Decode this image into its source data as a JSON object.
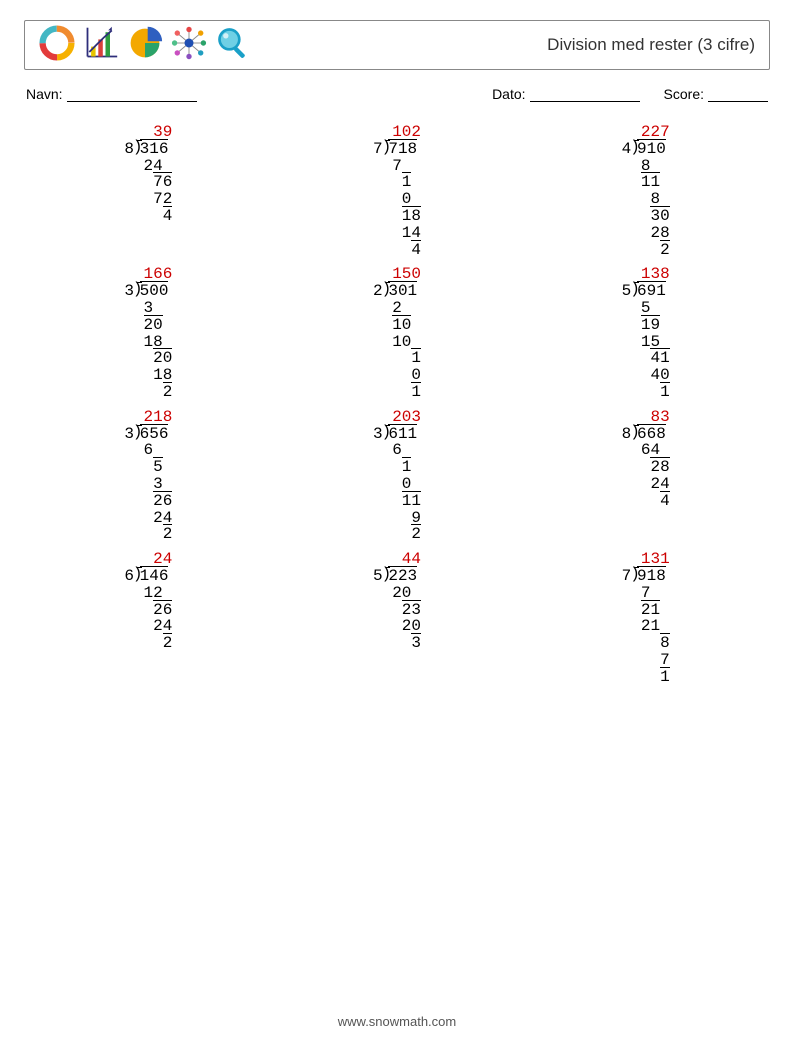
{
  "header": {
    "title": "Division med rester (3 cifre)",
    "icons": [
      "donut-icon",
      "bar-chart-icon",
      "pie-chart-icon",
      "network-icon",
      "magnify-icon"
    ],
    "icon_colors": {
      "donut": [
        "#f6b100",
        "#e23b3b",
        "#43b7c4",
        "#f08b2f"
      ],
      "bar": [
        "#2e2e7a",
        "#e6c400",
        "#d8403a",
        "#2f9e3f"
      ],
      "pie": [
        "#f3a800",
        "#2aa36a",
        "#2f5fc0"
      ],
      "net_center": "#1f4fb3",
      "net_points": [
        "#e64545",
        "#f0a000",
        "#2aa36a",
        "#1f9ec0",
        "#8a4fc0",
        "#c94fc0",
        "#4fc08a",
        "#f06060"
      ],
      "magnify": [
        "#1aa0c8",
        "#6fd0e5"
      ]
    }
  },
  "meta": {
    "name_label": "Navn:",
    "date_label": "Dato:",
    "score_label": "Score:"
  },
  "style": {
    "answer_color": "#c00000",
    "font_mono": "14px Courier New"
  },
  "problems": [
    {
      "divisor": "8",
      "dividend": "316",
      "quotient": "39",
      "lines": [
        {
          "t": "24",
          "pad": 1,
          "bt": false
        },
        {
          "t": "76",
          "pad": 2,
          "bt": true
        },
        {
          "t": "72",
          "pad": 2,
          "bt": false
        },
        {
          "t": "4",
          "pad": 3,
          "bt": true
        }
      ]
    },
    {
      "divisor": "7",
      "dividend": "718",
      "quotient": "102",
      "lines": [
        {
          "t": "7",
          "pad": 1,
          "bt": false
        },
        {
          "t": "1",
          "pad": 2,
          "bt": true
        },
        {
          "t": "0",
          "pad": 2,
          "bt": false
        },
        {
          "t": "18",
          "pad": 2,
          "bt": true
        },
        {
          "t": "14",
          "pad": 2,
          "bt": false
        },
        {
          "t": "4",
          "pad": 3,
          "bt": true
        }
      ]
    },
    {
      "divisor": "4",
      "dividend": "910",
      "quotient": "227",
      "lines": [
        {
          "t": "8",
          "pad": 1,
          "bt": false
        },
        {
          "t": "11",
          "pad": 1,
          "bt": true
        },
        {
          "t": "8",
          "pad": 2,
          "bt": false
        },
        {
          "t": "30",
          "pad": 2,
          "bt": true
        },
        {
          "t": "28",
          "pad": 2,
          "bt": false
        },
        {
          "t": "2",
          "pad": 3,
          "bt": true
        }
      ]
    },
    {
      "divisor": "3",
      "dividend": "500",
      "quotient": "166",
      "lines": [
        {
          "t": "3",
          "pad": 1,
          "bt": false
        },
        {
          "t": "20",
          "pad": 1,
          "bt": true
        },
        {
          "t": "18",
          "pad": 1,
          "bt": false
        },
        {
          "t": "20",
          "pad": 2,
          "bt": true
        },
        {
          "t": "18",
          "pad": 2,
          "bt": false
        },
        {
          "t": "2",
          "pad": 3,
          "bt": true
        }
      ]
    },
    {
      "divisor": "2",
      "dividend": "301",
      "quotient": "150",
      "lines": [
        {
          "t": "2",
          "pad": 1,
          "bt": false
        },
        {
          "t": "10",
          "pad": 1,
          "bt": true
        },
        {
          "t": "10",
          "pad": 1,
          "bt": false
        },
        {
          "t": "1",
          "pad": 3,
          "bt": true
        },
        {
          "t": "0",
          "pad": 3,
          "bt": false
        },
        {
          "t": "1",
          "pad": 3,
          "bt": true
        }
      ]
    },
    {
      "divisor": "5",
      "dividend": "691",
      "quotient": "138",
      "lines": [
        {
          "t": "5",
          "pad": 1,
          "bt": false
        },
        {
          "t": "19",
          "pad": 1,
          "bt": true
        },
        {
          "t": "15",
          "pad": 1,
          "bt": false
        },
        {
          "t": "41",
          "pad": 2,
          "bt": true
        },
        {
          "t": "40",
          "pad": 2,
          "bt": false
        },
        {
          "t": "1",
          "pad": 3,
          "bt": true
        }
      ]
    },
    {
      "divisor": "3",
      "dividend": "656",
      "quotient": "218",
      "lines": [
        {
          "t": "6",
          "pad": 1,
          "bt": false
        },
        {
          "t": "5",
          "pad": 2,
          "bt": true
        },
        {
          "t": "3",
          "pad": 2,
          "bt": false
        },
        {
          "t": "26",
          "pad": 2,
          "bt": true
        },
        {
          "t": "24",
          "pad": 2,
          "bt": false
        },
        {
          "t": "2",
          "pad": 3,
          "bt": true
        }
      ]
    },
    {
      "divisor": "3",
      "dividend": "611",
      "quotient": "203",
      "lines": [
        {
          "t": "6",
          "pad": 1,
          "bt": false
        },
        {
          "t": "1",
          "pad": 2,
          "bt": true
        },
        {
          "t": "0",
          "pad": 2,
          "bt": false
        },
        {
          "t": "11",
          "pad": 2,
          "bt": true
        },
        {
          "t": "9",
          "pad": 3,
          "bt": false
        },
        {
          "t": "2",
          "pad": 3,
          "bt": true
        }
      ]
    },
    {
      "divisor": "8",
      "dividend": "668",
      "quotient": "83",
      "lines": [
        {
          "t": "64",
          "pad": 1,
          "bt": false
        },
        {
          "t": "28",
          "pad": 2,
          "bt": true
        },
        {
          "t": "24",
          "pad": 2,
          "bt": false
        },
        {
          "t": "4",
          "pad": 3,
          "bt": true
        }
      ]
    },
    {
      "divisor": "6",
      "dividend": "146",
      "quotient": "24",
      "lines": [
        {
          "t": "12",
          "pad": 1,
          "bt": false
        },
        {
          "t": "26",
          "pad": 2,
          "bt": true
        },
        {
          "t": "24",
          "pad": 2,
          "bt": false
        },
        {
          "t": "2",
          "pad": 3,
          "bt": true
        }
      ]
    },
    {
      "divisor": "5",
      "dividend": "223",
      "quotient": "44",
      "lines": [
        {
          "t": "20",
          "pad": 1,
          "bt": false
        },
        {
          "t": "23",
          "pad": 2,
          "bt": true
        },
        {
          "t": "20",
          "pad": 2,
          "bt": false
        },
        {
          "t": "3",
          "pad": 3,
          "bt": true
        }
      ]
    },
    {
      "divisor": "7",
      "dividend": "918",
      "quotient": "131",
      "lines": [
        {
          "t": "7",
          "pad": 1,
          "bt": false
        },
        {
          "t": "21",
          "pad": 1,
          "bt": true
        },
        {
          "t": "21",
          "pad": 1,
          "bt": false
        },
        {
          "t": "8",
          "pad": 3,
          "bt": true
        },
        {
          "t": "7",
          "pad": 3,
          "bt": false
        },
        {
          "t": "1",
          "pad": 3,
          "bt": true
        }
      ]
    }
  ],
  "footer": {
    "text": "www.snowmath.com"
  }
}
